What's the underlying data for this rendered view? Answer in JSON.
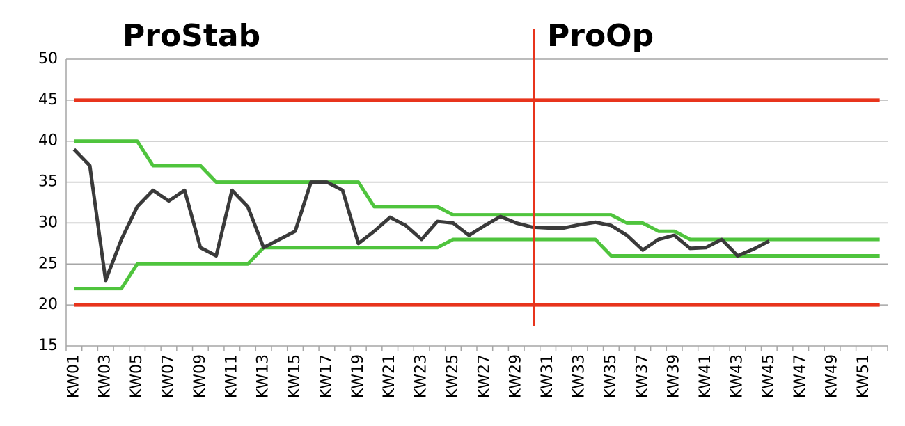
{
  "chart_data": {
    "type": "line",
    "annotations": [
      "ProStab",
      "ProOp"
    ],
    "categories": [
      "KW01",
      null,
      "KW03",
      null,
      "KW05",
      null,
      "KW07",
      null,
      "KW09",
      null,
      "KW11",
      null,
      "KW13",
      null,
      "KW15",
      null,
      "KW17",
      null,
      "KW19",
      null,
      "KW21",
      null,
      "KW23",
      null,
      "KW25",
      null,
      "KW27",
      null,
      "KW29",
      null,
      "KW31",
      null,
      "KW33",
      null,
      "KW35",
      null,
      "KW37",
      null,
      "KW39",
      null,
      "KW41",
      null,
      "KW43",
      null,
      "KW45",
      null,
      "KW47",
      null,
      "KW49",
      null,
      "KW51",
      null
    ],
    "series": [
      {
        "color": "#e8341c",
        "values": [
          45,
          45,
          45,
          45,
          45,
          45,
          45,
          45,
          45,
          45,
          45,
          45,
          45,
          45,
          45,
          45,
          45,
          45,
          45,
          45,
          45,
          45,
          45,
          45,
          45,
          45,
          45,
          45,
          45,
          45,
          45,
          45,
          45,
          45,
          45,
          45,
          45,
          45,
          45,
          45,
          45,
          45,
          45,
          45,
          45,
          45,
          45,
          45,
          45,
          45,
          45,
          45
        ]
      },
      {
        "color": "#e8341c",
        "values": [
          20,
          20,
          20,
          20,
          20,
          20,
          20,
          20,
          20,
          20,
          20,
          20,
          20,
          20,
          20,
          20,
          20,
          20,
          20,
          20,
          20,
          20,
          20,
          20,
          20,
          20,
          20,
          20,
          20,
          20,
          20,
          20,
          20,
          20,
          20,
          20,
          20,
          20,
          20,
          20,
          20,
          20,
          20,
          20,
          20,
          20,
          20,
          20,
          20,
          20,
          20,
          20
        ]
      },
      {
        "color": "#4fc43d",
        "values": [
          40,
          40,
          40,
          40,
          40,
          37,
          37,
          37,
          37,
          35,
          35,
          35,
          35,
          35,
          35,
          35,
          35,
          35,
          35,
          32,
          32,
          32,
          32,
          32,
          31,
          31,
          31,
          31,
          31,
          31,
          31,
          31,
          31,
          31,
          31,
          30,
          30,
          29,
          29,
          28,
          28,
          28,
          28,
          28,
          28,
          28,
          28,
          28,
          28,
          28,
          28,
          28
        ]
      },
      {
        "color": "#4fc43d",
        "values": [
          22,
          22,
          22,
          22,
          25,
          25,
          25,
          25,
          25,
          25,
          25,
          25,
          27,
          27,
          27,
          27,
          27,
          27,
          27,
          27,
          27,
          27,
          27,
          27,
          28,
          28,
          28,
          28,
          28,
          28,
          28,
          28,
          28,
          28,
          26,
          26,
          26,
          26,
          26,
          26,
          26,
          26,
          26,
          26,
          26,
          26,
          26,
          26,
          26,
          26,
          26,
          26
        ]
      },
      {
        "color": "#3a3a3a",
        "values": [
          39,
          37,
          23,
          28,
          32,
          34,
          32.7,
          34,
          27,
          26,
          34,
          32,
          27,
          28,
          29,
          35,
          35,
          34,
          27.5,
          29,
          30.7,
          29.7,
          28,
          30.2,
          30,
          28.5,
          29.7,
          30.8,
          30,
          29.5,
          29.4,
          29.4,
          29.8,
          30.1,
          29.7,
          28.5,
          26.7,
          28,
          28.5,
          26.9,
          27,
          28,
          26,
          26.8,
          27.8,
          null,
          null,
          null,
          null,
          null,
          null,
          null
        ]
      }
    ],
    "ylim": [
      15,
      50
    ],
    "yticks": [
      15,
      20,
      25,
      30,
      35,
      40,
      45,
      50
    ],
    "grid": true
  }
}
